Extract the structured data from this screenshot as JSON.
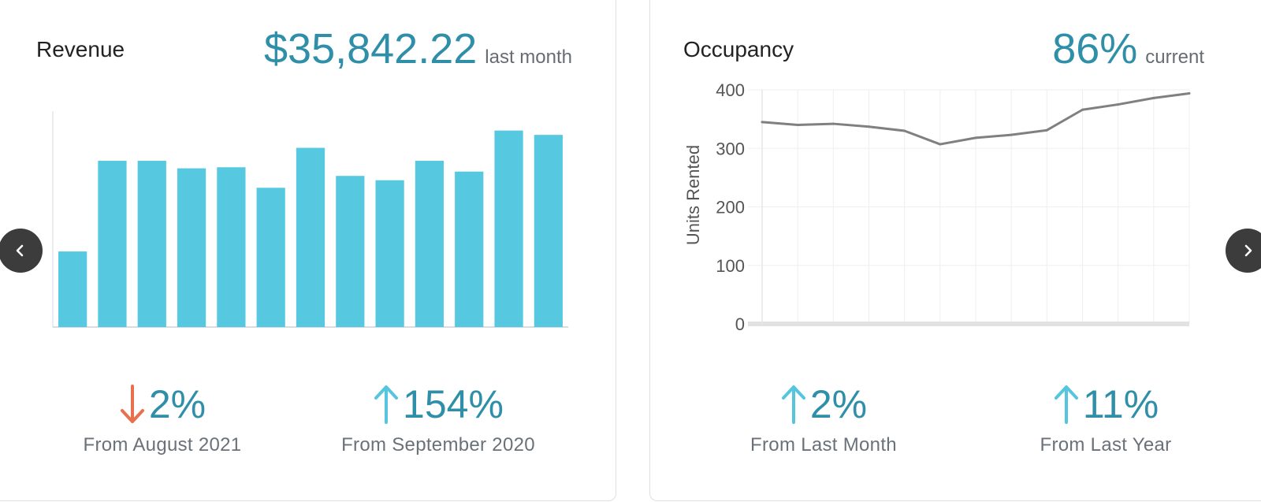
{
  "revenue": {
    "title": "Revenue",
    "value": "$35,842.22",
    "value_caption": "last month",
    "stats": [
      {
        "direction": "down",
        "percent": "2%",
        "caption": "From August 2021",
        "color": "#e8704f"
      },
      {
        "direction": "up",
        "percent": "154%",
        "caption": "From September 2020",
        "color": "#56c6df"
      }
    ]
  },
  "occupancy": {
    "title": "Occupancy",
    "value": "86%",
    "value_caption": "current",
    "stats": [
      {
        "direction": "up",
        "percent": "2%",
        "caption": "From Last Month",
        "color": "#56c6df"
      },
      {
        "direction": "up",
        "percent": "11%",
        "caption": "From Last Year",
        "color": "#56c6df"
      }
    ]
  },
  "chart_data": [
    {
      "type": "bar",
      "title": "",
      "xlabel": "",
      "ylabel": "",
      "color": "#56c9e1",
      "ylim": [
        0,
        100
      ],
      "values": [
        35,
        77,
        77,
        73.5,
        74,
        64.5,
        83,
        70,
        68,
        77,
        72,
        91,
        89
      ],
      "axis_labels_shown": false
    },
    {
      "type": "line",
      "title": "",
      "xlabel": "",
      "ylabel": "Units Rented",
      "color": "#808080",
      "ylim": [
        0,
        400
      ],
      "yticks": [
        0,
        100,
        200,
        300,
        400
      ],
      "values": [
        345,
        340,
        342,
        337,
        330,
        307,
        318,
        323,
        331,
        366,
        375,
        386,
        394
      ],
      "grid": true
    }
  ],
  "nav": {
    "prev_icon": "chevron-left-icon",
    "next_icon": "chevron-right-icon"
  }
}
